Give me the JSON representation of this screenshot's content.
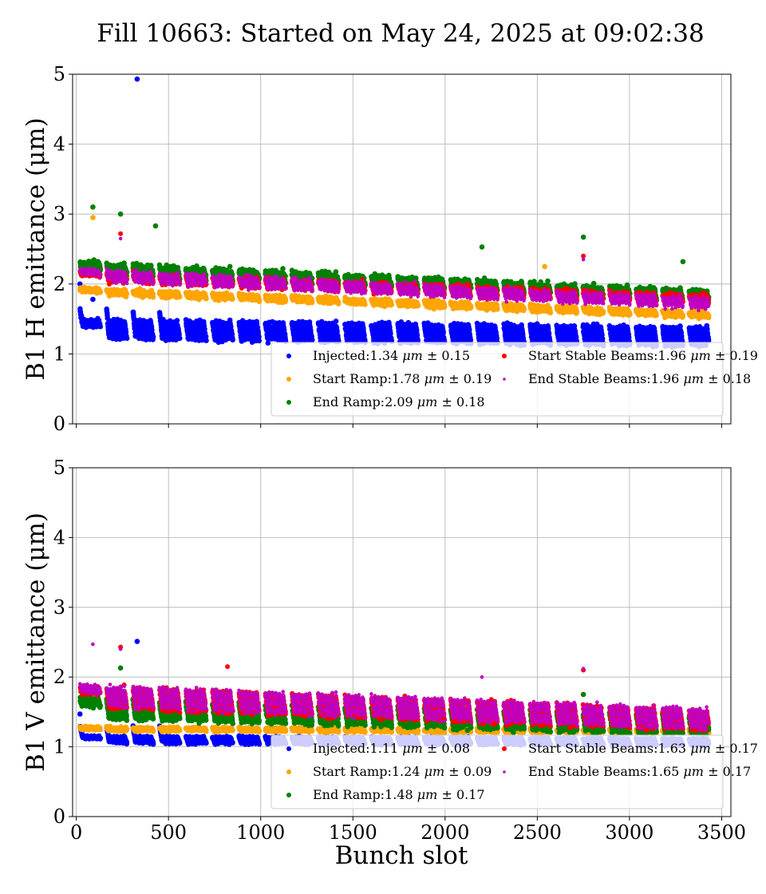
{
  "title": "Fill 10663: Started on May 24, 2025 at 09:02:38",
  "colors": {
    "Injected": "#0000ff",
    "Start Ramp": "#ffa500",
    "End Ramp": "#008000",
    "Start Stable Beams": "#ff0000",
    "End Stable Beams": "#c000c0"
  },
  "chart_data": [
    {
      "type": "scatter",
      "title": "",
      "xlabel": "",
      "ylabel": "B1 H emittance (μm)",
      "xlim": [
        -20,
        3550
      ],
      "ylim": [
        0,
        5
      ],
      "xticks": [
        0,
        500,
        1000,
        1500,
        2000,
        2500,
        3000,
        3500
      ],
      "xtick_labels_visible": false,
      "yticks": [
        0,
        1,
        2,
        3,
        4,
        5
      ],
      "grid": true,
      "legend_position": "lower-right",
      "series": [
        {
          "name": "Injected",
          "legend": "Injected:1.34 μm ± 0.15",
          "mean": 1.34,
          "std": 0.15,
          "outliers": [
            [
              330,
              4.93
            ],
            [
              20,
              2.0
            ],
            [
              90,
              1.78
            ]
          ]
        },
        {
          "name": "Start Ramp",
          "legend": "Start Ramp:1.78 μm ± 0.19",
          "mean": 1.78,
          "std": 0.19,
          "outliers": [
            [
              90,
              2.95
            ],
            [
              2540,
              2.25
            ]
          ]
        },
        {
          "name": "End Ramp",
          "legend": "End Ramp:2.09 μm ± 0.18",
          "mean": 2.09,
          "std": 0.18,
          "outliers": [
            [
              90,
              3.1
            ],
            [
              240,
              3.0
            ],
            [
              430,
              2.83
            ],
            [
              2750,
              2.67
            ],
            [
              2200,
              2.53
            ],
            [
              3290,
              2.32
            ]
          ]
        },
        {
          "name": "Start Stable Beams",
          "legend": "Start Stable Beams:1.96 μm ± 0.19",
          "mean": 1.96,
          "std": 0.19,
          "outliers": [
            [
              240,
              2.72
            ],
            [
              2750,
              2.4
            ]
          ]
        },
        {
          "name": "End Stable Beams",
          "legend": "End Stable Beams:1.96 μm ± 0.18",
          "mean": 1.96,
          "std": 0.18,
          "outliers": [
            [
              240,
              2.65
            ],
            [
              2750,
              2.35
            ]
          ]
        }
      ]
    },
    {
      "type": "scatter",
      "title": "",
      "xlabel": "Bunch slot",
      "ylabel": "B1 V emittance (μm)",
      "xlim": [
        -20,
        3550
      ],
      "ylim": [
        0,
        5
      ],
      "xticks": [
        0,
        500,
        1000,
        1500,
        2000,
        2500,
        3000,
        3500
      ],
      "xtick_labels_visible": true,
      "yticks": [
        0,
        1,
        2,
        3,
        4,
        5
      ],
      "grid": true,
      "legend_position": "lower-right",
      "series": [
        {
          "name": "Injected",
          "legend": "Injected:1.11 μm ± 0.08",
          "mean": 1.11,
          "std": 0.08,
          "outliers": [
            [
              330,
              2.51
            ],
            [
              20,
              1.47
            ]
          ]
        },
        {
          "name": "Start Ramp",
          "legend": "Start Ramp:1.24 μm ± 0.09",
          "mean": 1.24,
          "std": 0.09,
          "outliers": []
        },
        {
          "name": "End Ramp",
          "legend": "End Ramp:1.48 μm ± 0.17",
          "mean": 1.48,
          "std": 0.17,
          "outliers": [
            [
              240,
              2.13
            ],
            [
              2750,
              1.75
            ]
          ]
        },
        {
          "name": "Start Stable Beams",
          "legend": "Start Stable Beams:1.63 μm ± 0.17",
          "mean": 1.63,
          "std": 0.17,
          "outliers": [
            [
              240,
              2.43
            ],
            [
              820,
              2.15
            ],
            [
              2750,
              2.1
            ]
          ]
        },
        {
          "name": "End Stable Beams",
          "legend": "End Stable Beams:1.65 μm ± 0.17",
          "mean": 1.65,
          "std": 0.17,
          "outliers": [
            [
              90,
              2.47
            ],
            [
              240,
              2.4
            ],
            [
              2750,
              2.12
            ],
            [
              2200,
              2.0
            ]
          ]
        }
      ]
    }
  ]
}
